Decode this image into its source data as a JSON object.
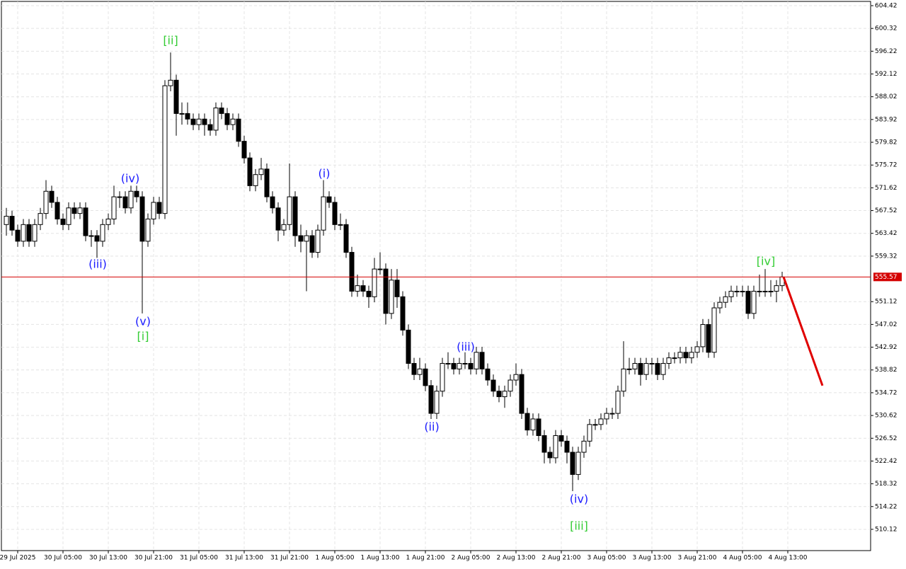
{
  "chart_data": {
    "type": "candlestick",
    "ohlc": [
      [
        565,
        568,
        563,
        566.5
      ],
      [
        566.5,
        567.5,
        563,
        564
      ],
      [
        564,
        565,
        561,
        562
      ],
      [
        562,
        566,
        561,
        565
      ],
      [
        565,
        566,
        561,
        562
      ],
      [
        562,
        566,
        561,
        565
      ],
      [
        565,
        568,
        564,
        567
      ],
      [
        567,
        573,
        566,
        571
      ],
      [
        571,
        572,
        568,
        569
      ],
      [
        569,
        570,
        565,
        566
      ],
      [
        566,
        567,
        564,
        565
      ],
      [
        565,
        569,
        564,
        568
      ],
      [
        568,
        569,
        566,
        567
      ],
      [
        567,
        569,
        566,
        568
      ],
      [
        568,
        569,
        562,
        563
      ],
      [
        563,
        564,
        561,
        563
      ],
      [
        563,
        564,
        559,
        562
      ],
      [
        562,
        566,
        561,
        565
      ],
      [
        565,
        567,
        564,
        566
      ],
      [
        566,
        572,
        565,
        570
      ],
      [
        570,
        571,
        568,
        570
      ],
      [
        570,
        571,
        567,
        568
      ],
      [
        568,
        572,
        567,
        571
      ],
      [
        571,
        572,
        569,
        570
      ],
      [
        570,
        571,
        549,
        562
      ],
      [
        562,
        567,
        561,
        566
      ],
      [
        566,
        570,
        565,
        569
      ],
      [
        569,
        570,
        566,
        567
      ],
      [
        567,
        591,
        566,
        590
      ],
      [
        590,
        596,
        589,
        591
      ],
      [
        591,
        592,
        581,
        585
      ],
      [
        585,
        587,
        583,
        585
      ],
      [
        585,
        587,
        583,
        584
      ],
      [
        584,
        585,
        582,
        583
      ],
      [
        583,
        585,
        582,
        584
      ],
      [
        584,
        585,
        581,
        583
      ],
      [
        583,
        584,
        581,
        582
      ],
      [
        582,
        587,
        581,
        586
      ],
      [
        586,
        587,
        584,
        585
      ],
      [
        585,
        586,
        582,
        583
      ],
      [
        583,
        585,
        582,
        584
      ],
      [
        584,
        585,
        579,
        580
      ],
      [
        580,
        581,
        576,
        577
      ],
      [
        577,
        578,
        571,
        572
      ],
      [
        572,
        575,
        571,
        574
      ],
      [
        574,
        577,
        573,
        575
      ],
      [
        575,
        576,
        569,
        570
      ],
      [
        570,
        571,
        567,
        568
      ],
      [
        568,
        569,
        562,
        564
      ],
      [
        564,
        566,
        563,
        565
      ],
      [
        565,
        576,
        564,
        570
      ],
      [
        570,
        571,
        561,
        563
      ],
      [
        563,
        565,
        560,
        562
      ],
      [
        562,
        564,
        553,
        563
      ],
      [
        563,
        564,
        559,
        560
      ],
      [
        560,
        565,
        559,
        564
      ],
      [
        564,
        573,
        563,
        570
      ],
      [
        570,
        571,
        568,
        569
      ],
      [
        569,
        570,
        564,
        565
      ],
      [
        565,
        567,
        564,
        565
      ],
      [
        565,
        566,
        559,
        560
      ],
      [
        560,
        561,
        552,
        553
      ],
      [
        553,
        556,
        552,
        554
      ],
      [
        554,
        555,
        552,
        553
      ],
      [
        553,
        554,
        550,
        552
      ],
      [
        552,
        559,
        551,
        557
      ],
      [
        557,
        560,
        556,
        557
      ],
      [
        557,
        558,
        547,
        549
      ],
      [
        549,
        557,
        548,
        555
      ],
      [
        555,
        557,
        550,
        552
      ],
      [
        552,
        553,
        545,
        546
      ],
      [
        546,
        547,
        539,
        540
      ],
      [
        540,
        541,
        537,
        538
      ],
      [
        538,
        541,
        537,
        539
      ],
      [
        539,
        540,
        535,
        536
      ],
      [
        536,
        537,
        530,
        531
      ],
      [
        531,
        536,
        530,
        535
      ],
      [
        535,
        541,
        534,
        540
      ],
      [
        540,
        542,
        539,
        540
      ],
      [
        540,
        541,
        538,
        539
      ],
      [
        539,
        541,
        538,
        540
      ],
      [
        540,
        542,
        539,
        540
      ],
      [
        540,
        541,
        538,
        539
      ],
      [
        539,
        543,
        538,
        542
      ],
      [
        542,
        543,
        538,
        539
      ],
      [
        539,
        540,
        536,
        537
      ],
      [
        537,
        538,
        534,
        535
      ],
      [
        535,
        536,
        533,
        534
      ],
      [
        534,
        536,
        532,
        535
      ],
      [
        535,
        538,
        534,
        537
      ],
      [
        537,
        540,
        536,
        538
      ],
      [
        538,
        539,
        530,
        531
      ],
      [
        531,
        532,
        527,
        528
      ],
      [
        528,
        531,
        527,
        530
      ],
      [
        530,
        531,
        526,
        527
      ],
      [
        527,
        528,
        522,
        524
      ],
      [
        524,
        525,
        522,
        523
      ],
      [
        523,
        528,
        522,
        527
      ],
      [
        527,
        528,
        525,
        526
      ],
      [
        526,
        527,
        522,
        524
      ],
      [
        524,
        525,
        517,
        520
      ],
      [
        520,
        525,
        519,
        524
      ],
      [
        524,
        527,
        523,
        526
      ],
      [
        526,
        530,
        525,
        529
      ],
      [
        529,
        530,
        528,
        529
      ],
      [
        529,
        531,
        528,
        530
      ],
      [
        530,
        532,
        529,
        531
      ],
      [
        531,
        532,
        530,
        531
      ],
      [
        531,
        536,
        530,
        535
      ],
      [
        535,
        544,
        534,
        539
      ],
      [
        539,
        541,
        538,
        539
      ],
      [
        539,
        541,
        538,
        540
      ],
      [
        540,
        541,
        536,
        538
      ],
      [
        538,
        541,
        537,
        540
      ],
      [
        540,
        541,
        538,
        540
      ],
      [
        540,
        541,
        537,
        538
      ],
      [
        538,
        541,
        537,
        540
      ],
      [
        540,
        542,
        539,
        541
      ],
      [
        541,
        542,
        540,
        541
      ],
      [
        541,
        543,
        540,
        542
      ],
      [
        542,
        543,
        540,
        541
      ],
      [
        541,
        543,
        540,
        542
      ],
      [
        542,
        544,
        541,
        543
      ],
      [
        543,
        548,
        542,
        547
      ],
      [
        547,
        548,
        541,
        542
      ],
      [
        542,
        551,
        541,
        550
      ],
      [
        550,
        552,
        549,
        551
      ],
      [
        551,
        553,
        550,
        552
      ],
      [
        552,
        554,
        551,
        553
      ],
      [
        553,
        554,
        552,
        553
      ],
      [
        553,
        554,
        552,
        553
      ],
      [
        553,
        554,
        548,
        549
      ],
      [
        549,
        554,
        548,
        553
      ],
      [
        553,
        556,
        552,
        553
      ],
      [
        553,
        557,
        552,
        553
      ],
      [
        553,
        555,
        552,
        553
      ],
      [
        553,
        555,
        551,
        554
      ],
      [
        554,
        556.5,
        553,
        555.57
      ]
    ],
    "categories": [
      "29 Jul 2025",
      "30 Jul 05:00",
      "30 Jul 13:00",
      "30 Jul 21:00",
      "31 Jul 05:00",
      "31 Jul 13:00",
      "31 Jul 21:00",
      "1 Aug 05:00",
      "1 Aug 13:00",
      "1 Aug 21:00",
      "2 Aug 05:00",
      "2 Aug 13:00",
      "2 Aug 21:00",
      "3 Aug 05:00",
      "3 Aug 13:00",
      "3 Aug 21:00",
      "4 Aug 05:00",
      "4 Aug 13:00"
    ],
    "ylim": [
      506.29,
      605.44
    ],
    "yticks": [
      604.42,
      600.32,
      596.22,
      592.12,
      588.02,
      583.92,
      579.82,
      575.72,
      571.62,
      567.52,
      563.42,
      559.32,
      551.12,
      547.02,
      542.92,
      538.82,
      534.72,
      530.62,
      526.52,
      522.42,
      518.32,
      514.22,
      510.12
    ],
    "grid": true,
    "current_price": 555.57,
    "current_price_color": "#d40000",
    "forecast": [
      555.57,
      536
    ],
    "forecast_color": "#e00000",
    "wave_labels": [
      {
        "text": "(iii)",
        "color": "#1a1aff"
      },
      {
        "text": "(iv)",
        "color": "#1a1aff"
      },
      {
        "text": "(v)",
        "color": "#1a1aff"
      },
      {
        "text": "[i]",
        "color": "#33cc33"
      },
      {
        "text": "[ii]",
        "color": "#33cc33"
      },
      {
        "text": "(i)",
        "color": "#1a1aff"
      },
      {
        "text": "(ii)",
        "color": "#1a1aff"
      },
      {
        "text": "(iii)",
        "color": "#1a1aff"
      },
      {
        "text": "(iv)",
        "color": "#1a1aff"
      },
      {
        "text": "[iii]",
        "color": "#33cc33"
      },
      {
        "text": "[iv]",
        "color": "#33cc33"
      }
    ]
  }
}
